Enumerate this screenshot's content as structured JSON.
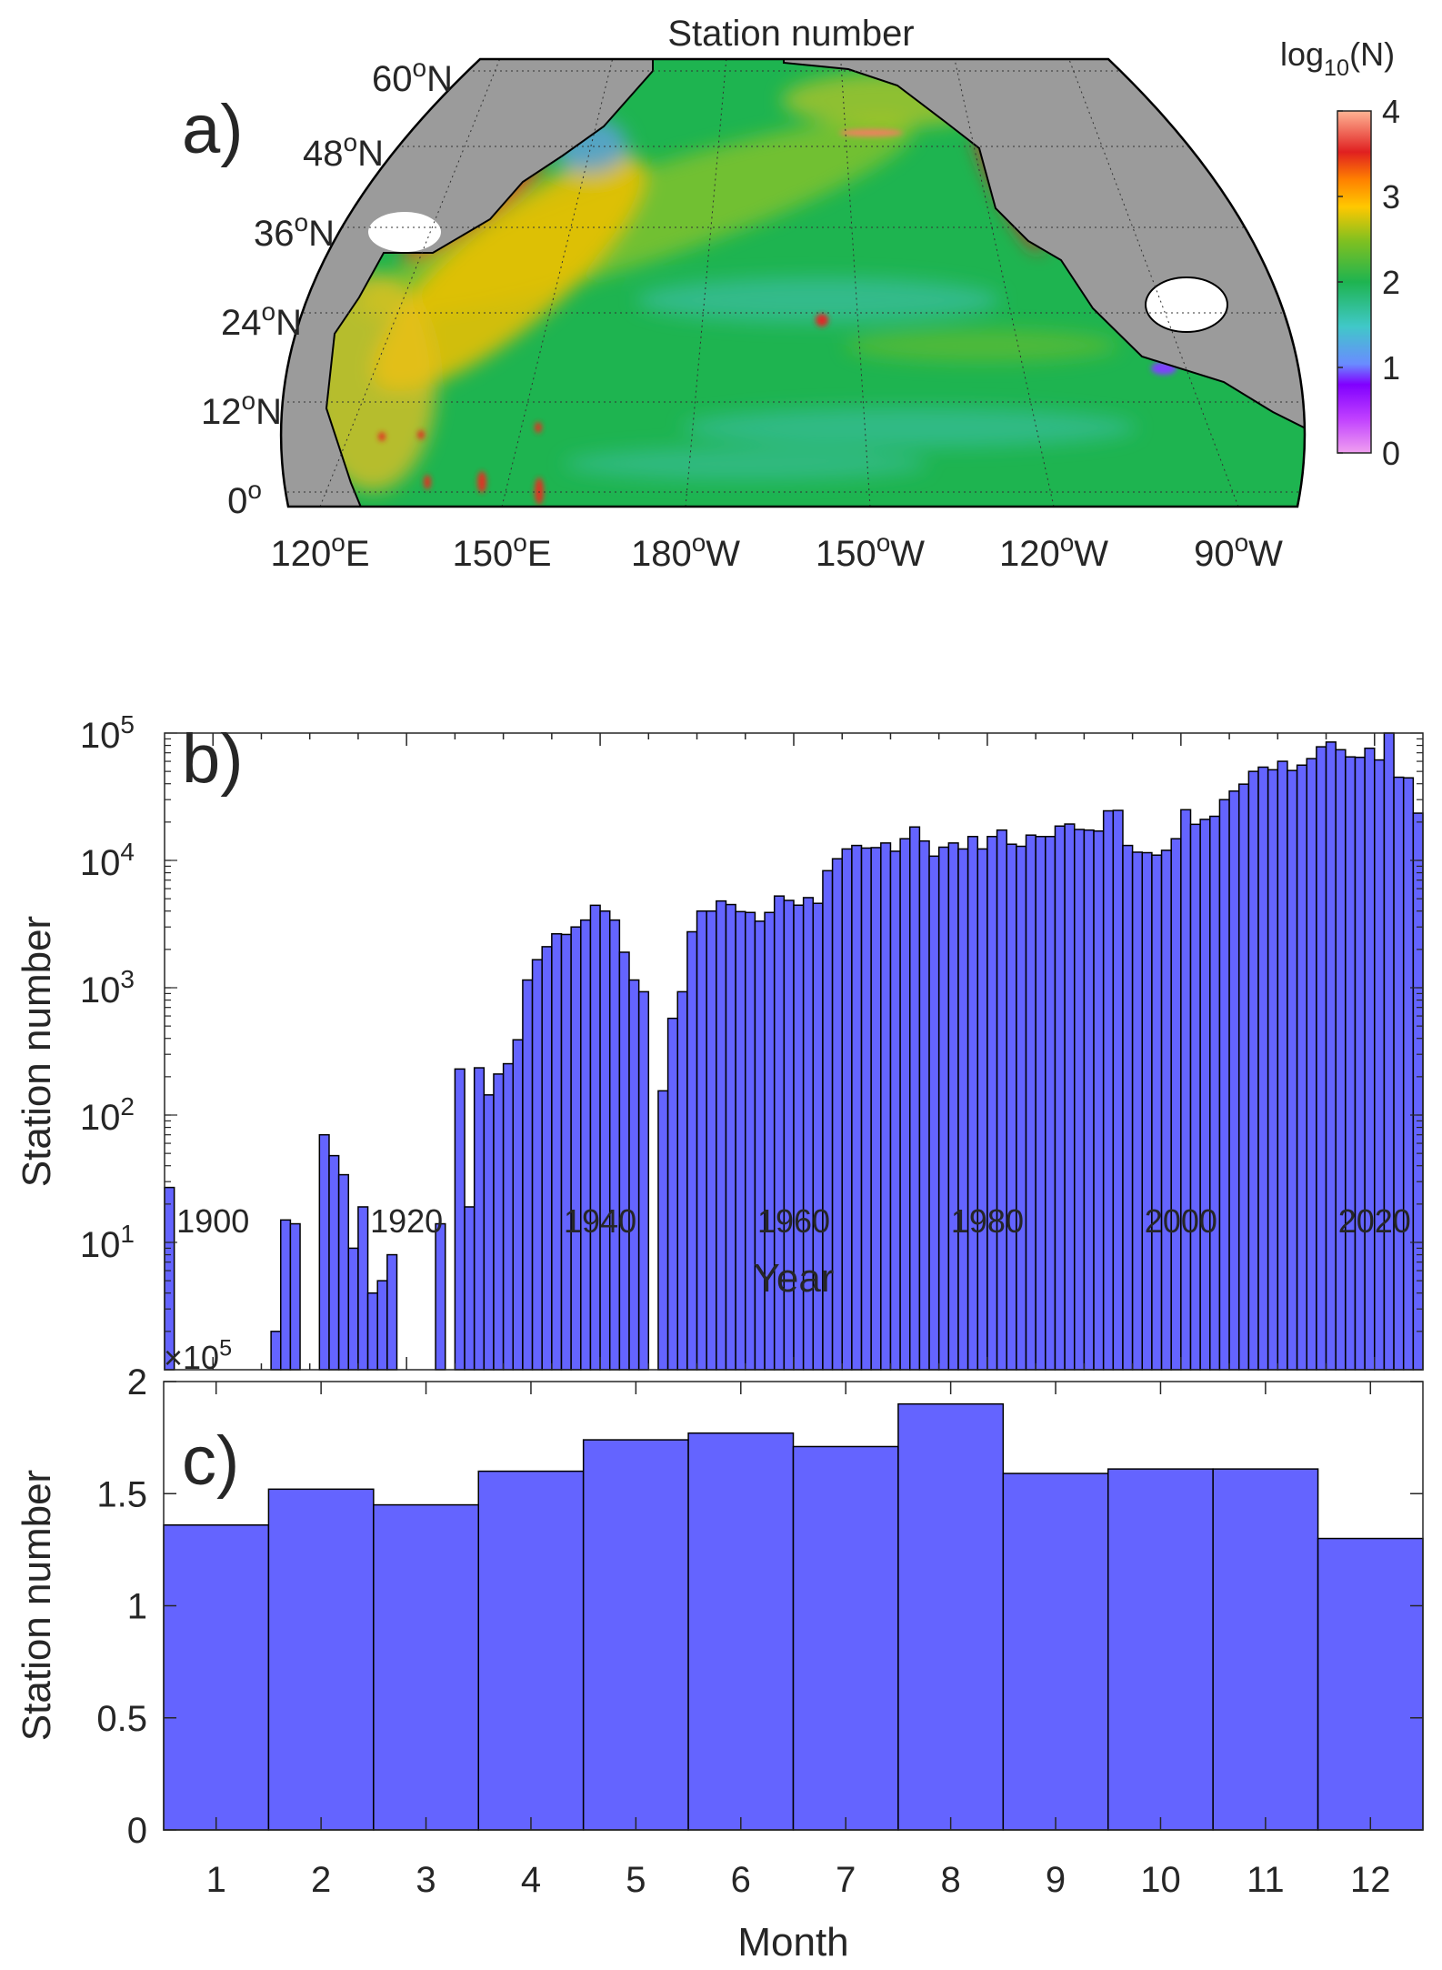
{
  "chart_data": [
    {
      "type": "heatmap",
      "panel_label": "a)",
      "title": "Station number",
      "colorbar": {
        "label_base": "log",
        "label_sub": "10",
        "label_tail": "(N)",
        "ticks": [
          "0",
          "1",
          "2",
          "3",
          "4"
        ],
        "range": [
          0,
          4
        ]
      },
      "lat_labels": [
        {
          "num": "60",
          "dir": "N"
        },
        {
          "num": "48",
          "dir": "N"
        },
        {
          "num": "36",
          "dir": "N"
        },
        {
          "num": "24",
          "dir": "N"
        },
        {
          "num": "12",
          "dir": "N"
        },
        {
          "num": "0",
          "dir": ""
        }
      ],
      "lon_labels": [
        {
          "num": "120",
          "dir": "E"
        },
        {
          "num": "150",
          "dir": "E"
        },
        {
          "num": "180",
          "dir": "W"
        },
        {
          "num": "150",
          "dir": "W"
        },
        {
          "num": "120",
          "dir": "W"
        },
        {
          "num": "90",
          "dir": "W"
        }
      ],
      "degree_symbol": "o",
      "colors": {
        "land": "#9b9b9b",
        "low": "#e89ef0",
        "mid": "#1eb450",
        "high": "#ffb494"
      }
    },
    {
      "type": "bar",
      "panel_label": "b)",
      "xlabel": "Year",
      "ylabel": "Station number",
      "yscale": "log",
      "xlim": [
        1895,
        2025
      ],
      "ylim": [
        1,
        100000
      ],
      "xticks": [
        "1900",
        "1920",
        "1940",
        "1960",
        "1980",
        "2000",
        "2020"
      ],
      "ytick_base": "10",
      "ytick_exps": [
        "1",
        "2",
        "3",
        "4",
        "5"
      ],
      "years_start": 1895,
      "values": [
        27,
        0,
        0,
        0,
        0,
        0,
        0,
        0,
        0,
        0,
        0,
        2,
        15,
        14,
        0,
        0,
        70,
        48,
        34,
        9,
        19,
        4,
        5,
        8,
        0,
        0,
        0,
        0,
        14,
        0,
        230,
        19,
        235,
        144,
        210,
        253,
        390,
        1150,
        1660,
        2100,
        2650,
        2620,
        3000,
        3400,
        4440,
        4000,
        3400,
        1900,
        1150,
        930,
        0,
        155,
        575,
        930,
        2750,
        4000,
        4000,
        4800,
        4500,
        3960,
        3900,
        3330,
        3900,
        5250,
        4850,
        4450,
        5100,
        4600,
        8300,
        10300,
        12300,
        13100,
        12500,
        12600,
        13700,
        11800,
        14800,
        18300,
        14200,
        10800,
        12700,
        13700,
        12300,
        15400,
        12300,
        15400,
        17300,
        13400,
        12900,
        15800,
        15400,
        15400,
        18600,
        19300,
        17500,
        17300,
        17000,
        24500,
        24700,
        13100,
        11600,
        11500,
        11000,
        12000,
        14800,
        25000,
        19200,
        21000,
        22200,
        30000,
        35000,
        39700,
        50000,
        54000,
        51500,
        60000,
        50800,
        56000,
        63000,
        78000,
        85000,
        74000,
        65000,
        64500,
        76000,
        61500,
        100000,
        45000,
        44500,
        23500
      ],
      "bar_color": "#6464ff"
    },
    {
      "type": "bar",
      "panel_label": "c)",
      "xlabel": "Month",
      "ylabel": "Station number",
      "multiplier_base": "×10",
      "multiplier_exp": "5",
      "categories": [
        "1",
        "2",
        "3",
        "4",
        "5",
        "6",
        "7",
        "8",
        "9",
        "10",
        "11",
        "12"
      ],
      "values": [
        136000,
        152000,
        145000,
        160000,
        174000,
        177000,
        171000,
        190000,
        159000,
        161000,
        161000,
        130000
      ],
      "ylim": [
        0,
        200000
      ],
      "yticks": [
        "0",
        "0.5",
        "1",
        "1.5",
        "2"
      ],
      "bar_color": "#6464ff"
    }
  ]
}
